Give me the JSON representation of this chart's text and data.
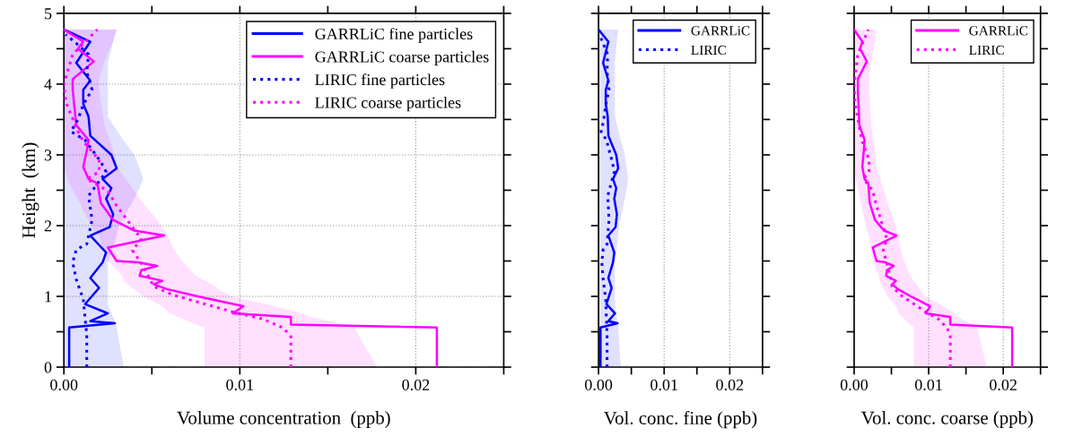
{
  "chart_data": [
    {
      "type": "line",
      "orientation": "horizontal",
      "xlabel": "Volume concentration  (ppb)",
      "ylabel": "Height  (km)",
      "legend": "top right",
      "grid": true,
      "xlim": [
        0,
        0.025
      ],
      "xticks": [
        {
          "value": 0,
          "label": "0.00"
        },
        {
          "value": 0.005,
          "label": null
        },
        {
          "value": 0.01,
          "label": "0.01"
        },
        {
          "value": 0.015,
          "label": null
        },
        {
          "value": 0.02,
          "label": "0.02"
        },
        {
          "value": 0.025,
          "label": null
        }
      ],
      "ylim": [
        0,
        5
      ],
      "yticks": [
        0,
        {
          "value": 0.5,
          "label": null
        },
        1,
        {
          "value": 1.5,
          "label": null
        },
        2,
        {
          "value": 2.5,
          "label": null
        },
        3,
        {
          "value": 3.5,
          "label": null
        },
        4,
        {
          "value": 4.5,
          "label": null
        },
        5
      ],
      "series": [
        {
          "name": "GARRLiC fine particles",
          "color": "#0000ff",
          "line_style": "solid",
          "values": [
            0.0003,
            0.0003,
            0.0029,
            0.0015,
            0.0025,
            0.0012,
            0.002,
            0.0015,
            0.0022,
            0.0024,
            0.0015,
            0.0026,
            0.0028,
            0.0024,
            0.0027,
            0.0022,
            0.003,
            0.0027,
            0.0015,
            0.0014,
            0.0011,
            0.0011,
            0.0015,
            0.0007,
            0.0015,
            0.0
          ],
          "x": [
            0,
            0.56,
            0.62,
            0.65,
            0.76,
            0.89,
            1.12,
            1.26,
            1.48,
            1.62,
            1.86,
            1.98,
            2.16,
            2.38,
            2.53,
            2.66,
            2.81,
            3.0,
            3.27,
            3.54,
            3.72,
            3.92,
            4.05,
            4.3,
            4.6,
            4.77
          ],
          "lower": [
            0,
            0,
            0,
            0,
            0,
            0,
            0,
            0,
            0,
            0,
            0,
            0,
            0,
            0,
            0,
            0,
            0,
            0,
            0,
            0,
            0,
            0,
            0,
            0,
            0,
            0
          ],
          "upper": [
            0.0034,
            0.003,
            0.0029,
            0.0029,
            0.0027,
            0.0025,
            0.0025,
            0.0025,
            0.0025,
            0.0027,
            0.003,
            0.0031,
            0.0035,
            0.004,
            0.0043,
            0.0045,
            0.0043,
            0.004,
            0.0032,
            0.0025,
            0.0025,
            0.0025,
            0.0025,
            0.0025,
            0.0028,
            0.003
          ]
        },
        {
          "name": "GARRLiC coarse particles",
          "color": "#ff00ff",
          "line_style": "solid",
          "values": [
            0.0212,
            0.0212,
            0.0129,
            0.0129,
            0.0096,
            0.0102,
            0.0076,
            0.0059,
            0.0051,
            0.0056,
            0.0043,
            0.0044,
            0.0053,
            0.0042,
            0.003,
            0.0025,
            0.0057,
            0.004,
            0.0028,
            0.0021,
            0.0019,
            0.0014,
            0.0011,
            0.0013,
            0.0014,
            0.0007,
            0.0005,
            0.0005,
            0.0017,
            0.0008,
            0.0011,
            0.0
          ],
          "x": [
            0,
            0.56,
            0.6,
            0.71,
            0.76,
            0.86,
            1.0,
            1.1,
            1.17,
            1.22,
            1.29,
            1.37,
            1.43,
            1.48,
            1.5,
            1.69,
            1.86,
            1.93,
            2.08,
            2.32,
            2.6,
            2.66,
            2.83,
            3.06,
            3.21,
            3.42,
            3.92,
            4.07,
            4.32,
            4.5,
            4.6,
            4.77
          ],
          "lower": [
            0.008,
            0.008,
            0.0075,
            0.0065,
            0.006,
            0.0056,
            0.0045,
            0.004,
            0.0036,
            0.0034,
            0.0033,
            0.003,
            0.0028,
            0.0026,
            0.0025,
            0.0022,
            0.002,
            0.0017,
            0.0014,
            0.0009,
            0.0003,
            0.0002,
            0,
            0,
            0,
            0,
            0,
            0,
            0,
            0,
            0,
            0
          ],
          "upper": [
            0.0178,
            0.0165,
            0.016,
            0.014,
            0.0135,
            0.012,
            0.0095,
            0.0088,
            0.0084,
            0.008,
            0.0075,
            0.0072,
            0.007,
            0.0068,
            0.0067,
            0.0062,
            0.0059,
            0.0057,
            0.0053,
            0.0045,
            0.0037,
            0.0035,
            0.003,
            0.0028,
            0.0026,
            0.0023,
            0.002,
            0.002,
            0.0023,
            0.0026,
            0.0028,
            0.003
          ]
        },
        {
          "name": "LIRIC fine particles",
          "color": "#0000ff",
          "line_style": "dotted",
          "values": [
            0.0013,
            0.0013,
            0.0012,
            0.0011,
            0.0007,
            0.0005,
            0.0007,
            0.0013,
            0.0016,
            0.0014,
            0.0024,
            0.0021,
            0.0012,
            0.0004,
            0.0008,
            0.0011,
            0.0016,
            0.0013,
            0.0014,
            0.0006,
            0.0001
          ],
          "x": [
            0,
            0.46,
            0.7,
            0.96,
            1.24,
            1.48,
            1.66,
            1.74,
            2.08,
            2.42,
            2.76,
            2.9,
            3.21,
            3.33,
            3.5,
            3.71,
            3.92,
            4.17,
            4.42,
            4.6,
            4.7
          ]
        },
        {
          "name": "LIRIC coarse particles",
          "color": "#ff00ff",
          "line_style": "dotted",
          "values": [
            0.0129,
            0.0129,
            0.0125,
            0.0113,
            0.0096,
            0.0062,
            0.0051,
            0.0045,
            0.0039,
            0.0044,
            0.003,
            0.0025,
            0.0013,
            0.002,
            0.002,
            0.0011,
            0.0008,
            0.0001,
            0.0,
            0.0005,
            0.0019
          ],
          "x": [
            0,
            0.43,
            0.55,
            0.68,
            0.78,
            1.02,
            1.14,
            1.43,
            1.65,
            1.81,
            2.28,
            2.49,
            2.66,
            2.76,
            2.93,
            3.19,
            3.33,
            3.75,
            4.0,
            4.42,
            4.77
          ]
        }
      ]
    },
    {
      "type": "line",
      "orientation": "horizontal",
      "xlabel": "Vol. conc. fine (ppb)",
      "legend": "top right",
      "grid": true,
      "tick_labels": "x",
      "xlim": [
        0,
        0.025
      ],
      "xticks": [
        {
          "value": 0,
          "label": "0.00"
        },
        {
          "value": 0.005,
          "label": null
        },
        {
          "value": 0.01,
          "label": "0.01"
        },
        {
          "value": 0.015,
          "label": null
        },
        {
          "value": 0.02,
          "label": "0.02"
        },
        {
          "value": 0.025,
          "label": null
        }
      ],
      "ylim": [
        0,
        5
      ],
      "yticks": [
        {
          "value": 0,
          "label": null
        },
        {
          "value": 0.5,
          "label": null
        },
        {
          "value": 1,
          "label": null
        },
        {
          "value": 1.5,
          "label": null
        },
        {
          "value": 2,
          "label": null
        },
        {
          "value": 2.5,
          "label": null
        },
        {
          "value": 3,
          "label": null
        },
        {
          "value": 3.5,
          "label": null
        },
        {
          "value": 4,
          "label": null
        },
        {
          "value": 4.5,
          "label": null
        },
        {
          "value": 5,
          "label": null
        }
      ],
      "series": [
        {
          "name": "GARRLiC",
          "color": "#0000ff",
          "line_style": "solid",
          "values": [
            0.0003,
            0.0003,
            0.0029,
            0.0015,
            0.0025,
            0.0012,
            0.002,
            0.0015,
            0.0022,
            0.0024,
            0.0015,
            0.0026,
            0.0028,
            0.0024,
            0.0027,
            0.0022,
            0.003,
            0.0027,
            0.0015,
            0.0014,
            0.0011,
            0.0011,
            0.0015,
            0.0007,
            0.0015,
            0.0
          ],
          "x": [
            0,
            0.56,
            0.62,
            0.65,
            0.76,
            0.89,
            1.12,
            1.26,
            1.48,
            1.62,
            1.86,
            1.98,
            2.16,
            2.38,
            2.53,
            2.66,
            2.81,
            3.0,
            3.27,
            3.54,
            3.72,
            3.92,
            4.05,
            4.3,
            4.6,
            4.77
          ],
          "lower": [
            0,
            0,
            0,
            0,
            0,
            0,
            0,
            0,
            0,
            0,
            0,
            0,
            0,
            0,
            0,
            0,
            0,
            0,
            0,
            0,
            0,
            0,
            0,
            0,
            0,
            0
          ],
          "upper": [
            0.0034,
            0.003,
            0.0029,
            0.0029,
            0.0027,
            0.0025,
            0.0025,
            0.0025,
            0.0025,
            0.0027,
            0.003,
            0.0031,
            0.0035,
            0.004,
            0.0043,
            0.0045,
            0.0043,
            0.004,
            0.0032,
            0.0025,
            0.0025,
            0.0025,
            0.0025,
            0.0025,
            0.0028,
            0.003
          ]
        },
        {
          "name": "LIRIC",
          "color": "#0000ff",
          "line_style": "dotted",
          "values": [
            0.0013,
            0.0013,
            0.0012,
            0.0011,
            0.0007,
            0.0005,
            0.0007,
            0.0013,
            0.0016,
            0.0014,
            0.0024,
            0.0021,
            0.0012,
            0.0004,
            0.0008,
            0.0011,
            0.0016,
            0.0013,
            0.0014,
            0.0006,
            0.0001
          ],
          "x": [
            0,
            0.46,
            0.7,
            0.96,
            1.24,
            1.48,
            1.66,
            1.74,
            2.08,
            2.42,
            2.76,
            2.9,
            3.21,
            3.33,
            3.5,
            3.71,
            3.92,
            4.17,
            4.42,
            4.6,
            4.7
          ]
        }
      ]
    },
    {
      "type": "line",
      "orientation": "horizontal",
      "xlabel": "Vol. conc. coarse (ppb)",
      "legend": "top right",
      "grid": true,
      "tick_labels": "x",
      "xlim": [
        0,
        0.025
      ],
      "xticks": [
        {
          "value": 0,
          "label": "0.00"
        },
        {
          "value": 0.005,
          "label": null
        },
        {
          "value": 0.01,
          "label": "0.01"
        },
        {
          "value": 0.015,
          "label": null
        },
        {
          "value": 0.02,
          "label": "0.02"
        },
        {
          "value": 0.025,
          "label": null
        }
      ],
      "ylim": [
        0,
        5
      ],
      "yticks": [
        {
          "value": 0,
          "label": null
        },
        {
          "value": 0.5,
          "label": null
        },
        {
          "value": 1,
          "label": null
        },
        {
          "value": 1.5,
          "label": null
        },
        {
          "value": 2,
          "label": null
        },
        {
          "value": 2.5,
          "label": null
        },
        {
          "value": 3,
          "label": null
        },
        {
          "value": 3.5,
          "label": null
        },
        {
          "value": 4,
          "label": null
        },
        {
          "value": 4.5,
          "label": null
        },
        {
          "value": 5,
          "label": null
        }
      ],
      "series": [
        {
          "name": "GARRLiC",
          "color": "#ff00ff",
          "line_style": "solid",
          "values": [
            0.0212,
            0.0212,
            0.0129,
            0.0129,
            0.0096,
            0.0102,
            0.0076,
            0.0059,
            0.0051,
            0.0056,
            0.0043,
            0.0044,
            0.0053,
            0.0042,
            0.003,
            0.0025,
            0.0057,
            0.004,
            0.0028,
            0.0021,
            0.0019,
            0.0014,
            0.0011,
            0.0013,
            0.0014,
            0.0007,
            0.0005,
            0.0005,
            0.0017,
            0.0008,
            0.0011,
            0.0
          ],
          "x": [
            0,
            0.56,
            0.6,
            0.71,
            0.76,
            0.86,
            1.0,
            1.1,
            1.17,
            1.22,
            1.29,
            1.37,
            1.43,
            1.48,
            1.5,
            1.69,
            1.86,
            1.93,
            2.08,
            2.32,
            2.6,
            2.66,
            2.83,
            3.06,
            3.21,
            3.42,
            3.92,
            4.07,
            4.32,
            4.5,
            4.6,
            4.77
          ],
          "lower": [
            0.008,
            0.008,
            0.0075,
            0.0065,
            0.006,
            0.0056,
            0.0045,
            0.004,
            0.0036,
            0.0034,
            0.0033,
            0.003,
            0.0028,
            0.0026,
            0.0025,
            0.0022,
            0.002,
            0.0017,
            0.0014,
            0.0009,
            0.0003,
            0.0002,
            0,
            0,
            0,
            0,
            0,
            0,
            0,
            0,
            0,
            0
          ],
          "upper": [
            0.0178,
            0.0165,
            0.016,
            0.014,
            0.0135,
            0.012,
            0.0095,
            0.0088,
            0.0084,
            0.008,
            0.0075,
            0.0072,
            0.007,
            0.0068,
            0.0067,
            0.0062,
            0.0059,
            0.0057,
            0.0053,
            0.0045,
            0.0037,
            0.0035,
            0.003,
            0.0028,
            0.0026,
            0.0023,
            0.002,
            0.002,
            0.0023,
            0.0026,
            0.0028,
            0.003
          ]
        },
        {
          "name": "LIRIC",
          "color": "#ff00ff",
          "line_style": "dotted",
          "values": [
            0.0129,
            0.0129,
            0.0125,
            0.0113,
            0.0096,
            0.0062,
            0.0051,
            0.0045,
            0.0039,
            0.0044,
            0.003,
            0.0025,
            0.0013,
            0.002,
            0.002,
            0.0011,
            0.0008,
            0.0001,
            0.0,
            0.0005,
            0.0019
          ],
          "x": [
            0,
            0.43,
            0.55,
            0.68,
            0.78,
            1.02,
            1.14,
            1.43,
            1.65,
            1.81,
            2.28,
            2.49,
            2.66,
            2.76,
            2.93,
            3.19,
            3.33,
            3.75,
            4.0,
            4.42,
            4.77
          ]
        }
      ]
    }
  ]
}
